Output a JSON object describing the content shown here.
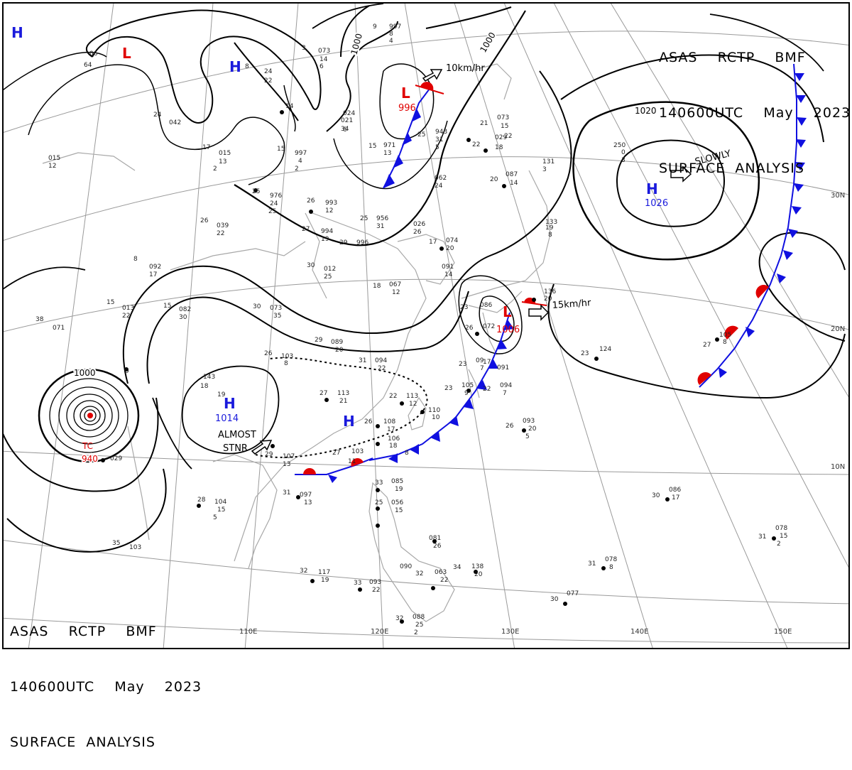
{
  "chart_header": {
    "line1": "ASAS    RCTP    BMF",
    "line2": "140600UTC    May    2023",
    "line3": "SURFACE  ANALYSIS"
  },
  "colors": {
    "cold_front": "#1010e0",
    "warm_front": "#e00000",
    "high_symbol": "#1a1adc",
    "low_symbol": "#e00000",
    "isobar": "#000000",
    "grid": "#9a9a9a",
    "coast": "#a8a8a8"
  },
  "lat_labels": [
    "30N",
    "20N",
    "10N"
  ],
  "lon_labels": [
    "110E",
    "120E",
    "130E",
    "140E",
    "150E"
  ],
  "pressure_centers": {
    "low_north": {
      "symbol": "L",
      "value": "996"
    },
    "low_japan": {
      "symbol": "L",
      "value": "1006"
    },
    "low_nw": {
      "symbol": "L"
    },
    "high_pacific": {
      "symbol": "H",
      "value": "1026"
    },
    "high_scs": {
      "symbol": "H",
      "value": "1014"
    },
    "high_china": {
      "symbol": "H"
    },
    "high_mongolia": {
      "symbol": "H"
    },
    "high_far_nw": {
      "symbol": "H"
    },
    "typhoon": {
      "label": "TC",
      "value": "940"
    }
  },
  "isobar_labels": {
    "ring_1000_west": "1000",
    "ring_1000_north": "1000",
    "ring_1000_ne": "1000",
    "ring_1020": "1020"
  },
  "motions": {
    "north_low": "10km/hr",
    "japan_low": "15km/hr",
    "pacific_high": "SLOWLY",
    "scs_high_line1": "ALMOST",
    "scs_high_line2": "STNR"
  },
  "station_values": [
    "06",
    "64",
    "24",
    "22",
    "8",
    "3",
    "073",
    "14",
    "6",
    "9",
    "997",
    "8",
    "4",
    "14",
    "024",
    "6",
    "042",
    "24",
    "021",
    "34",
    "17",
    "015",
    "13",
    "2",
    "15",
    "997",
    "4",
    "2",
    "015",
    "12",
    "25",
    "976",
    "24",
    "25",
    "26",
    "993",
    "12",
    "27",
    "994",
    "19",
    "29",
    "996",
    "25",
    "956",
    "31",
    "026",
    "26",
    "15",
    "971",
    "13",
    "25",
    "943",
    "31",
    "5",
    "22",
    "062",
    "24",
    "21",
    "073",
    "15",
    "22",
    "029",
    "18",
    "20",
    "087",
    "14",
    "131",
    "3",
    "250",
    "0",
    "3",
    "26",
    "039",
    "22",
    "8",
    "092",
    "17",
    "15",
    "013",
    "22",
    "15",
    "082",
    "30",
    "38",
    "071",
    "30",
    "012",
    "25",
    "30",
    "073",
    "35",
    "18",
    "067",
    "12",
    "17",
    "074",
    "20",
    "091",
    "14",
    "19",
    "133",
    "8",
    "136",
    "20",
    "23",
    "086",
    "26",
    "072",
    "105",
    "8",
    "23",
    "124",
    "27",
    "26",
    "103",
    "8",
    "29",
    "089",
    "20",
    "31",
    "094",
    "22",
    "23",
    "09",
    "7",
    "17",
    "091",
    "18",
    "143",
    "19",
    "27",
    "113",
    "21",
    "22",
    "113",
    "12",
    "110",
    "10",
    "23",
    "105",
    "9",
    "22",
    "094",
    "7",
    "26",
    "093",
    "20",
    "5",
    "26",
    "108",
    "17",
    "106",
    "18",
    "8",
    "29",
    "107",
    "13",
    "27",
    "103",
    "11",
    "9",
    "029",
    "33",
    "085",
    "19",
    "25",
    "056",
    "15",
    "28",
    "104",
    "15",
    "5",
    "31",
    "097",
    "13",
    "30",
    "086",
    "17",
    "31",
    "078",
    "15",
    "2",
    "35",
    "103",
    "081",
    "26",
    "32",
    "117",
    "19",
    "090",
    "32",
    "063",
    "22",
    "34",
    "138",
    "20",
    "33",
    "093",
    "22",
    "31",
    "078",
    "8",
    "30",
    "077",
    "32",
    "088",
    "25",
    "2"
  ]
}
